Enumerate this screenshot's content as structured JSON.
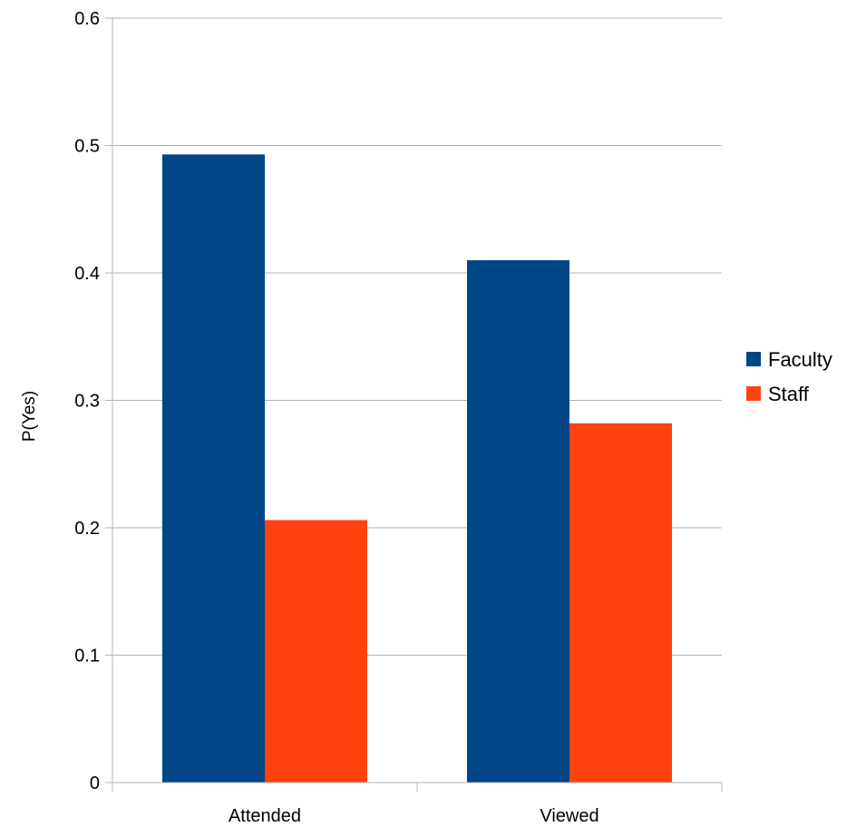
{
  "chart_data": {
    "type": "bar",
    "title": "",
    "xlabel": "",
    "ylabel": "P(Yes)",
    "categories": [
      "Attended",
      "Viewed"
    ],
    "series": [
      {
        "name": "Faculty",
        "color": "#004586",
        "values": [
          0.493,
          0.41
        ]
      },
      {
        "name": "Staff",
        "color": "#ff420e",
        "values": [
          0.206,
          0.282
        ]
      }
    ],
    "ylim": [
      0,
      0.6
    ],
    "yticks": [
      0,
      0.1,
      0.2,
      0.3,
      0.4,
      0.5,
      0.6
    ],
    "ytick_labels": [
      "0",
      "0.1",
      "0.2",
      "0.3",
      "0.4",
      "0.5",
      "0.6"
    ],
    "grid": true,
    "legend_position": "right"
  }
}
